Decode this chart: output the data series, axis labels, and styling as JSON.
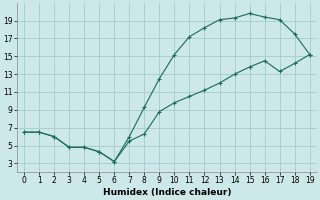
{
  "xlabel": "Humidex (Indice chaleur)",
  "background_color": "#cce8e8",
  "grid_color": "#aacfcf",
  "line_color": "#1a6b5a",
  "marker_color": "#1a6b5a",
  "line1_x": [
    0,
    1,
    2,
    3,
    4,
    5,
    6,
    7,
    8,
    9,
    10,
    11,
    12,
    13,
    14,
    15,
    16,
    17,
    18,
    19
  ],
  "line1_y": [
    6.5,
    6.5,
    6.0,
    4.8,
    4.8,
    4.3,
    3.2,
    6.0,
    9.3,
    12.5,
    15.2,
    17.2,
    18.2,
    19.1,
    19.3,
    19.8,
    19.4,
    19.1,
    17.5,
    15.2
  ],
  "line2_x": [
    0,
    1,
    2,
    3,
    4,
    5,
    6,
    7,
    8,
    9,
    10,
    11,
    12,
    13,
    14,
    15,
    16,
    17,
    18,
    19
  ],
  "line2_y": [
    6.5,
    6.5,
    6.0,
    4.8,
    4.8,
    4.3,
    3.2,
    5.5,
    6.3,
    8.8,
    9.8,
    10.5,
    11.2,
    12.0,
    13.0,
    13.8,
    14.5,
    13.3,
    14.2,
    15.2
  ],
  "xlim": [
    -0.5,
    19.5
  ],
  "ylim": [
    2,
    21
  ],
  "xticks": [
    0,
    1,
    2,
    3,
    4,
    5,
    6,
    7,
    8,
    9,
    10,
    11,
    12,
    13,
    14,
    15,
    16,
    17,
    18,
    19
  ],
  "yticks": [
    3,
    5,
    7,
    9,
    11,
    13,
    15,
    17,
    19
  ],
  "xlabel_fontsize": 6.5,
  "tick_fontsize": 5.5
}
